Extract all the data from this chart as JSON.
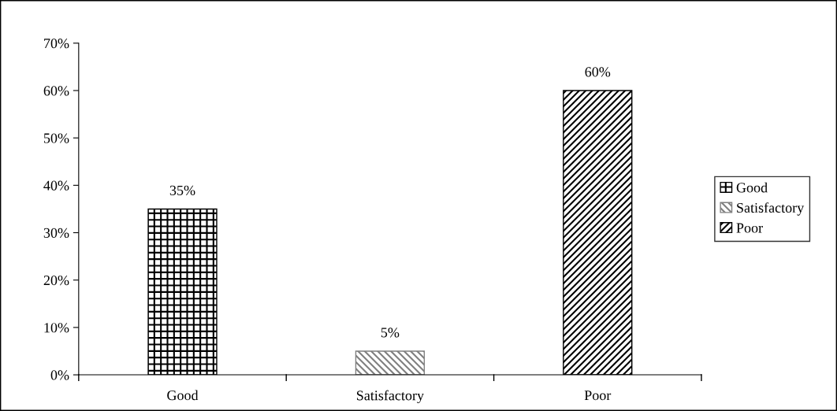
{
  "chart_data": {
    "type": "bar",
    "categories": [
      "Good",
      "Satisfactory",
      "Poor"
    ],
    "series": [
      {
        "name": "Good",
        "color": "#000000",
        "values": [
          35,
          null,
          null
        ],
        "value_labels": [
          "35%",
          null,
          null
        ]
      },
      {
        "name": "Satisfactory",
        "color": "#808080",
        "values": [
          null,
          5,
          null
        ],
        "value_labels": [
          null,
          "5%",
          null
        ]
      },
      {
        "name": "Poor",
        "color": "#000000",
        "values": [
          null,
          null,
          60
        ],
        "value_labels": [
          null,
          null,
          "60%"
        ]
      }
    ],
    "ylim": [
      0,
      70
    ],
    "yticks": [
      {
        "value": 0,
        "label": "0%"
      },
      {
        "value": 10,
        "label": "10%"
      },
      {
        "value": 20,
        "label": "20%"
      },
      {
        "value": 30,
        "label": "30%"
      },
      {
        "value": 40,
        "label": "40%"
      },
      {
        "value": 50,
        "label": "50%"
      },
      {
        "value": 60,
        "label": "60%"
      },
      {
        "value": 70,
        "label": "70%"
      }
    ],
    "legend": "right",
    "grid": false
  }
}
